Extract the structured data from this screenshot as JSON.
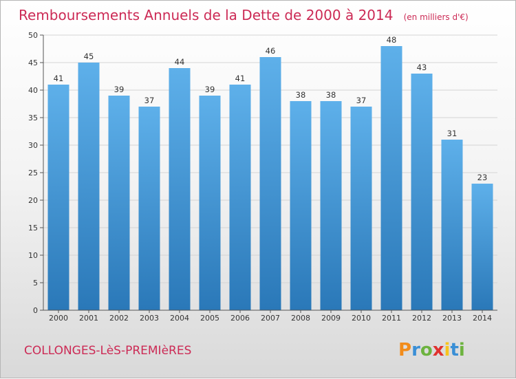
{
  "title": "Remboursements Annuels de la Dette de 2000 à 2014",
  "subtitle": "(en milliers d'€)",
  "city": "COLLONGES-LèS-PREMIèRES",
  "logo": "Proxiti",
  "colors": {
    "title": "#cc2a55",
    "bar_top": "#5eb0ea",
    "bar_bottom": "#2a78b8",
    "grid": "#d4d4d4",
    "axis": "#555555"
  },
  "chart_data": {
    "type": "bar",
    "title": "Remboursements Annuels de la Dette de 2000 à 2014",
    "xlabel": "",
    "ylabel": "en milliers d'€",
    "categories": [
      "2000",
      "2001",
      "2002",
      "2003",
      "2004",
      "2005",
      "2006",
      "2007",
      "2008",
      "2009",
      "2010",
      "2011",
      "2012",
      "2013",
      "2014"
    ],
    "values": [
      41,
      45,
      39,
      37,
      44,
      39,
      41,
      46,
      38,
      38,
      37,
      48,
      43,
      31,
      23
    ],
    "ylim": [
      0,
      50
    ],
    "yticks": [
      0,
      5,
      10,
      15,
      20,
      25,
      30,
      35,
      40,
      45,
      50
    ],
    "grid": true
  }
}
